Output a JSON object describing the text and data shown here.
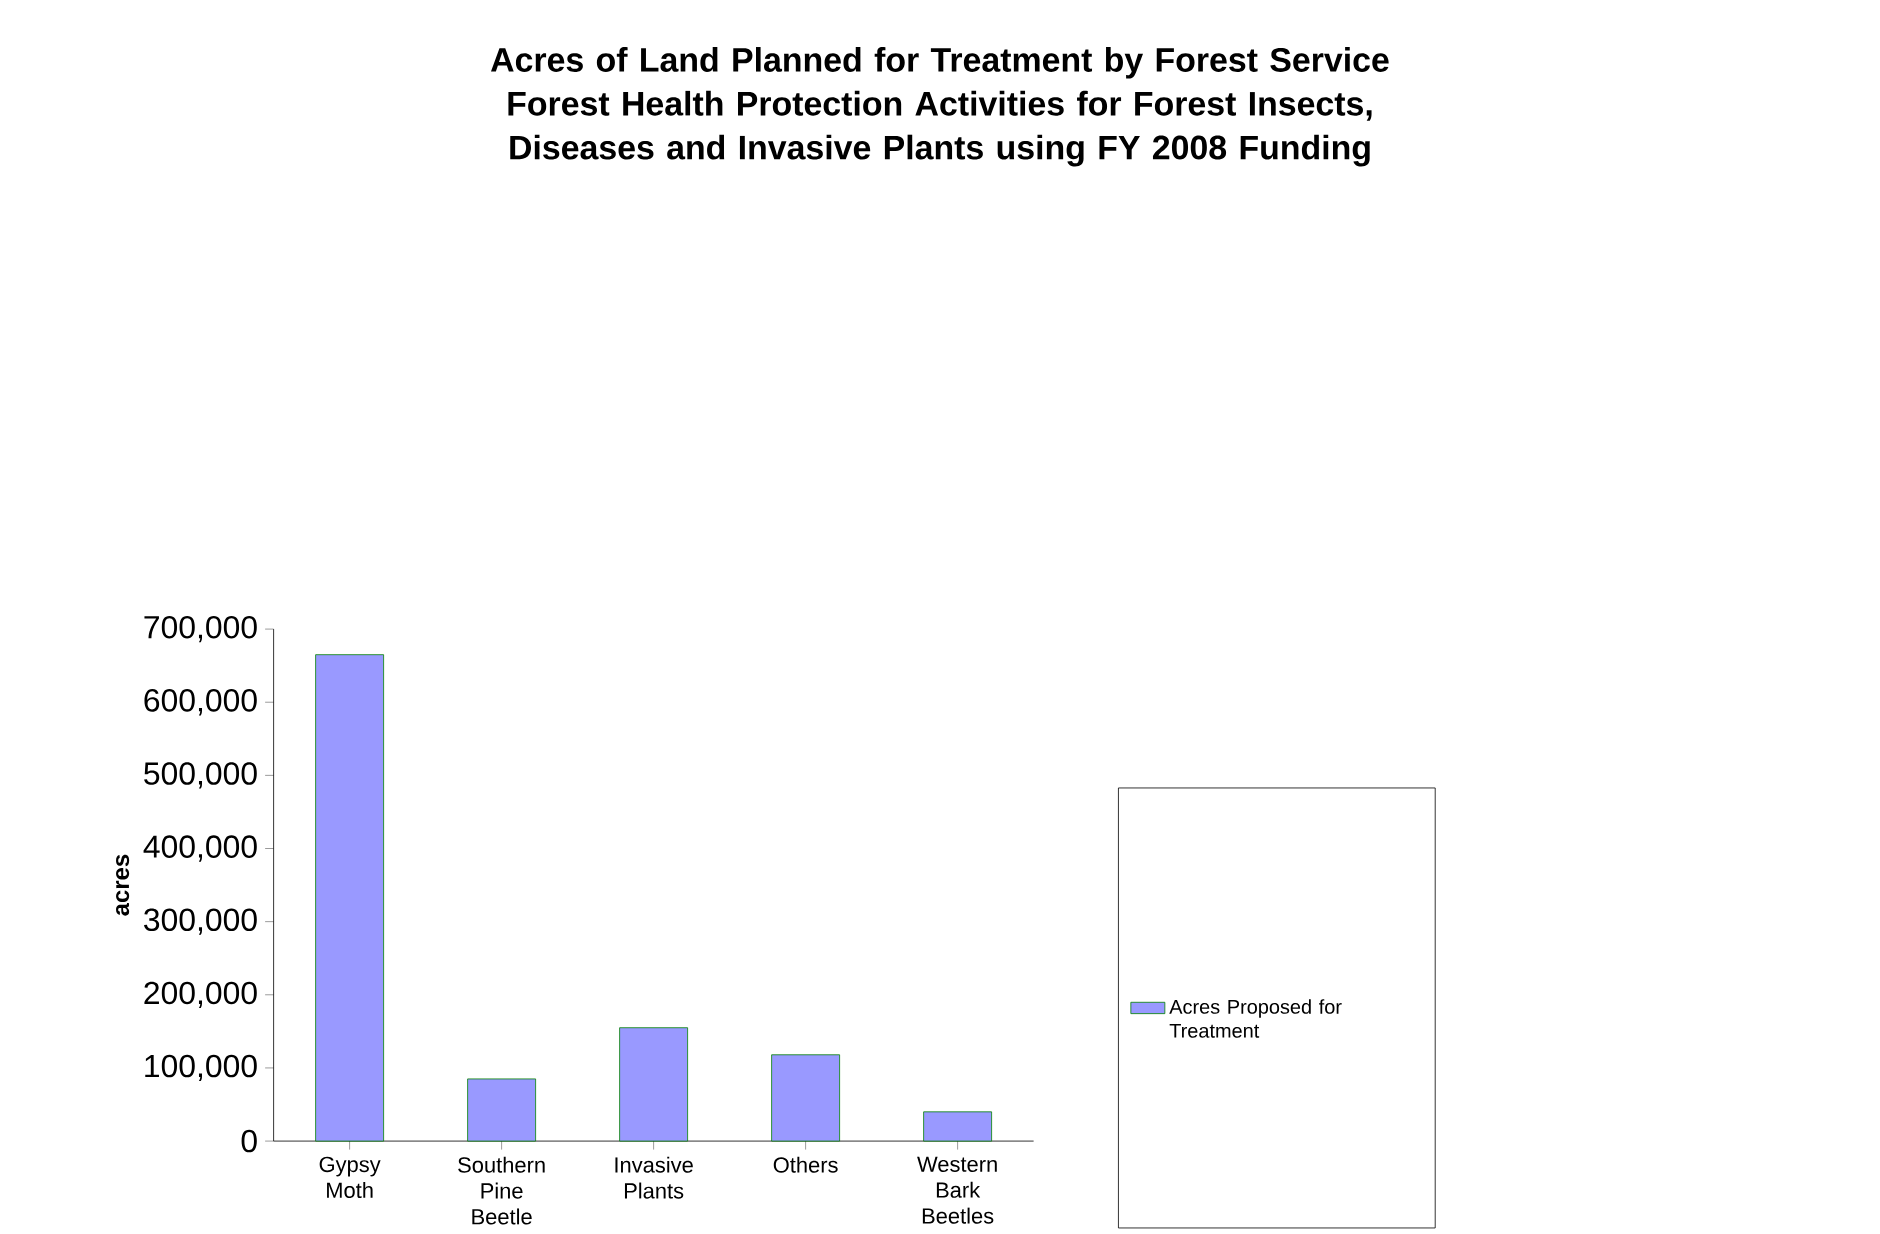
{
  "chart_data": {
    "type": "bar",
    "title": "Acres of Land Planned for Treatment by Forest Service Forest Health Protection Activities for Forest Insects, Diseases and Invasive Plants using FY 2008 Funding",
    "ylabel": "acres",
    "categories": [
      "Gypsy Moth",
      "Southern Pine Beetle",
      "Invasive Plants",
      "Others",
      "Western Bark Beetles"
    ],
    "series": [
      {
        "name": "Acres Proposed for Treatment",
        "color": "#9999ff",
        "values": [
          665000,
          85000,
          155000,
          118000,
          40000
        ]
      }
    ],
    "ylim": [
      0,
      700000
    ],
    "yticks": [
      {
        "value": 0,
        "label": "0"
      },
      {
        "value": 100000,
        "label": "100,000"
      },
      {
        "value": 200000,
        "label": "200,000"
      },
      {
        "value": 300000,
        "label": "300,000"
      },
      {
        "value": 400000,
        "label": "400,000"
      },
      {
        "value": 500000,
        "label": "500,000"
      },
      {
        "value": 600000,
        "label": "600,000"
      },
      {
        "value": 700000,
        "label": "700,000"
      }
    ],
    "grid": false,
    "legend": "right"
  }
}
